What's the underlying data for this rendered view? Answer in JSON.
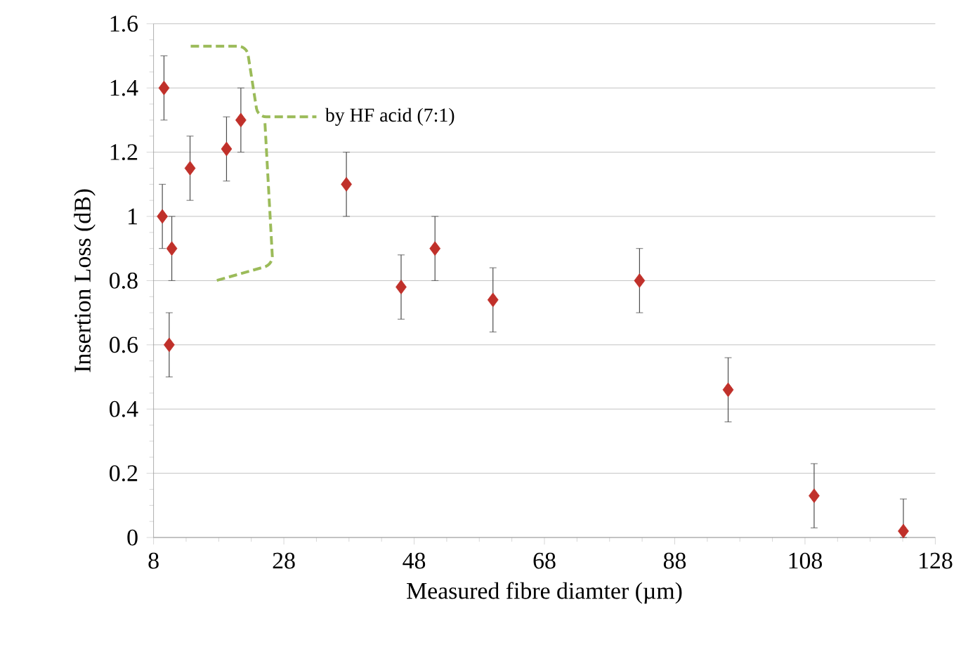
{
  "chart_data": {
    "type": "scatter",
    "xlabel": "Measured fibre diamter (µm)",
    "ylabel": "Insertion Loss (dB)",
    "x": [
      9.6,
      9.35,
      10.8,
      10.4,
      13.6,
      19.2,
      21.4,
      37.6,
      46.0,
      51.2,
      60.1,
      82.6,
      96.2,
      109.4,
      123.1
    ],
    "values": [
      1.4,
      1.0,
      0.9,
      0.6,
      1.15,
      1.21,
      1.3,
      1.1,
      0.78,
      0.9,
      0.74,
      0.8,
      0.46,
      0.13,
      0.02
    ],
    "errors": [
      0.1,
      0.1,
      0.1,
      0.1,
      0.1,
      0.1,
      0.1,
      0.1,
      0.1,
      0.1,
      0.1,
      0.1,
      0.1,
      0.1,
      [
        0,
        0.12
      ]
    ],
    "color": "#c0302a",
    "marker": "diamond",
    "xlim": [
      8,
      128
    ],
    "xticks": [
      8,
      28,
      48,
      68,
      88,
      108,
      128
    ],
    "ylim": [
      0,
      1.6
    ],
    "yticks": [
      0,
      0.2,
      0.4,
      0.6,
      0.8,
      1,
      1.2,
      1.4,
      1.6
    ],
    "grid": "y",
    "annotations": [
      "by HF acid (7:1)"
    ]
  }
}
